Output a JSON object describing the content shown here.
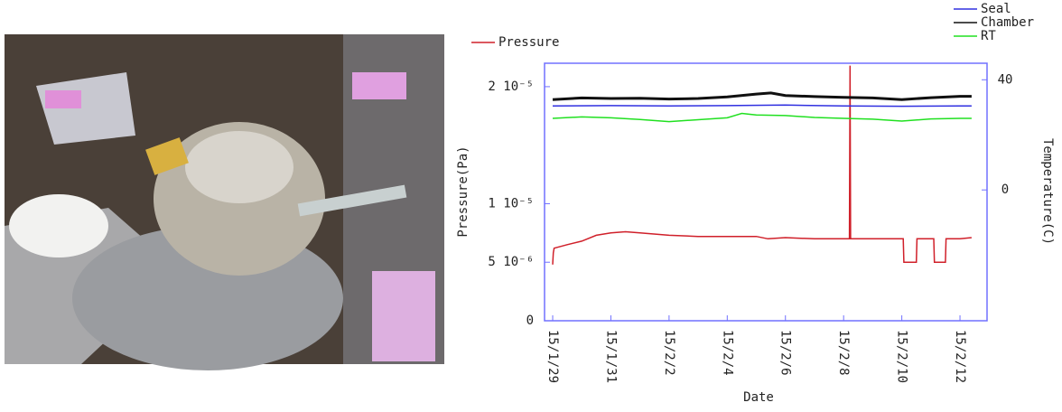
{
  "chart_data": {
    "type": "line",
    "y_label": "Pressure(Pa)",
    "y2_label": "Temperature(C)",
    "x_label": "Date",
    "xlim": [
      -0.28,
      14.93
    ],
    "xticks": [
      {
        "value": 0,
        "label": "15/1/29"
      },
      {
        "value": 2,
        "label": "15/1/31"
      },
      {
        "value": 4,
        "label": "15/2/2"
      },
      {
        "value": 6,
        "label": "15/2/4"
      },
      {
        "value": 8,
        "label": "15/2/6"
      },
      {
        "value": 10,
        "label": "15/2/8"
      },
      {
        "value": 12,
        "label": "15/2/10"
      },
      {
        "value": 14,
        "label": "15/2/12"
      }
    ],
    "ylim": [
      0,
      2.2e-05
    ],
    "yticks": [
      0,
      {
        "value": 5e-06,
        "label": "5 10⁻⁶"
      },
      {
        "value": 1e-05,
        "label": "1 10⁻⁵"
      },
      {
        "value": 2e-05,
        "label": "2 10⁻⁵"
      }
    ],
    "y2lim": [
      -47.5,
      46
    ],
    "y2ticks": [
      0,
      40
    ],
    "series": [
      {
        "name": "Pressure",
        "color": "#d0202a",
        "axis": "y",
        "x": [
          0,
          0.02,
          0.05,
          0.5,
          1,
          1.5,
          2,
          2.5,
          3,
          4,
          5,
          6,
          7,
          7.4,
          8,
          9,
          10.2,
          10.22,
          10.24,
          10.5,
          11,
          12.05,
          12.07,
          12.5,
          12.52,
          13,
          13.1,
          13.12,
          13.5,
          13.52,
          14,
          14.4
        ],
        "values": [
          4.8e-06,
          5.8e-06,
          6.2e-06,
          6.5e-06,
          6.8e-06,
          7.3e-06,
          7.5e-06,
          7.6e-06,
          7.5e-06,
          7.3e-06,
          7.2e-06,
          7.2e-06,
          7.2e-06,
          7e-06,
          7.1e-06,
          7e-06,
          7e-06,
          2.18e-05,
          7e-06,
          7e-06,
          7e-06,
          7e-06,
          5e-06,
          5e-06,
          7e-06,
          7e-06,
          7e-06,
          5e-06,
          5e-06,
          7e-06,
          7e-06,
          7.1e-06
        ]
      },
      {
        "name": "Seal",
        "color": "#3030e0",
        "axis": "y2",
        "x": [
          0,
          2,
          4,
          6,
          8,
          10,
          12,
          14,
          14.4
        ],
        "values": [
          30.5,
          30.6,
          30.5,
          30.6,
          30.8,
          30.5,
          30.4,
          30.5,
          30.5
        ]
      },
      {
        "name": "Chamber",
        "color": "#101010",
        "axis": "y2",
        "x": [
          0,
          1,
          2,
          3,
          4,
          5,
          6,
          7,
          7.5,
          8,
          9,
          10,
          11,
          12,
          13,
          14,
          14.4
        ],
        "values": [
          32.8,
          33.4,
          33.2,
          33.3,
          33,
          33.2,
          33.8,
          34.8,
          35.2,
          34.3,
          33.9,
          33.6,
          33.4,
          32.8,
          33.5,
          34,
          34
        ]
      },
      {
        "name": "RT",
        "color": "#20e020",
        "axis": "y2",
        "x": [
          0,
          1,
          2,
          3,
          4,
          5,
          6,
          6.5,
          7,
          8,
          9,
          10,
          11,
          12,
          13,
          14,
          14.4
        ],
        "values": [
          26,
          26.5,
          26.2,
          25.6,
          24.8,
          25.5,
          26.2,
          27.8,
          27.2,
          27,
          26.3,
          26,
          25.7,
          25,
          25.8,
          26,
          26
        ]
      }
    ]
  }
}
